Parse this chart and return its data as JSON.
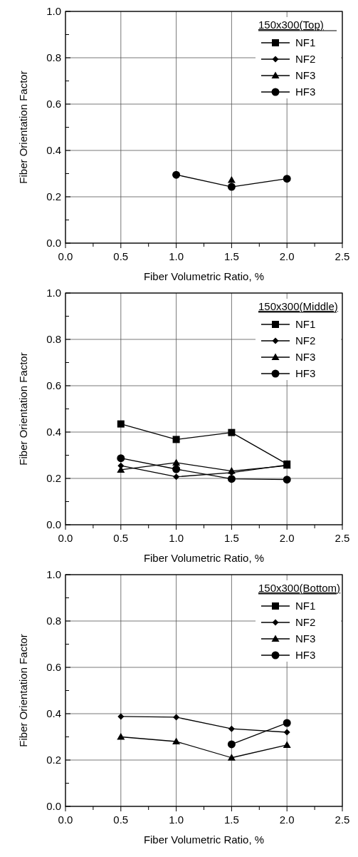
{
  "chart_data": [
    {
      "type": "line",
      "xlabel": "Fiber Volumetric Ratio,  %",
      "ylabel": "Fiber Orientation Factor",
      "legend_title": "150x300(Top)",
      "x": [
        1.0,
        1.5,
        2.0
      ],
      "xlim": [
        0,
        2.5
      ],
      "ylim": [
        0,
        1
      ],
      "xticks": [
        {
          "value": 0,
          "label": "0.0"
        },
        {
          "value": 0.25,
          "label": null
        },
        0.5,
        {
          "value": 0.75,
          "label": null
        },
        {
          "value": 1,
          "label": "1.0"
        },
        {
          "value": 1.25,
          "label": null
        },
        1.5,
        {
          "value": 1.75,
          "label": null
        },
        {
          "value": 2,
          "label": "2.0"
        },
        {
          "value": 2.25,
          "label": null
        },
        2.5
      ],
      "yticks": [
        {
          "value": 0,
          "label": "0.0"
        },
        {
          "value": 0.1,
          "label": null
        },
        0.2,
        {
          "value": 0.3,
          "label": null
        },
        0.4,
        {
          "value": 0.5,
          "label": null
        },
        0.6,
        {
          "value": 0.7,
          "label": null
        },
        0.8,
        {
          "value": 0.9,
          "label": null
        },
        {
          "value": 1,
          "label": "1.0"
        }
      ],
      "grid": true,
      "legend": "top right",
      "line_style": "solid",
      "series": [
        {
          "name": "NF1",
          "color": "#000000",
          "marker": "square",
          "values": [
            null,
            null,
            null
          ]
        },
        {
          "name": "NF2",
          "color": "#000000",
          "marker": "diamond",
          "values": [
            null,
            null,
            null
          ]
        },
        {
          "name": "NF3",
          "color": "#000000",
          "marker": "triangle",
          "values": [
            null,
            0.272,
            null
          ]
        },
        {
          "name": "HF3",
          "color": "#000000",
          "marker": "circle",
          "values": [
            0.295,
            0.243,
            0.278
          ]
        }
      ]
    },
    {
      "type": "line",
      "xlabel": "Fiber Volumetric Ratio,  %",
      "ylabel": "Fiber Orientation Factor",
      "legend_title": "150x300(Middle)",
      "x": [
        0.5,
        1.0,
        1.5,
        2.0
      ],
      "xlim": [
        0,
        2.5
      ],
      "ylim": [
        0,
        1
      ],
      "xticks": [
        {
          "value": 0,
          "label": "0.0"
        },
        {
          "value": 0.25,
          "label": null
        },
        0.5,
        {
          "value": 0.75,
          "label": null
        },
        {
          "value": 1,
          "label": "1.0"
        },
        {
          "value": 1.25,
          "label": null
        },
        1.5,
        {
          "value": 1.75,
          "label": null
        },
        {
          "value": 2,
          "label": "2.0"
        },
        {
          "value": 2.25,
          "label": null
        },
        2.5
      ],
      "yticks": [
        {
          "value": 0,
          "label": "0.0"
        },
        {
          "value": 0.1,
          "label": null
        },
        0.2,
        {
          "value": 0.3,
          "label": null
        },
        0.4,
        {
          "value": 0.5,
          "label": null
        },
        0.6,
        {
          "value": 0.7,
          "label": null
        },
        0.8,
        {
          "value": 0.9,
          "label": null
        },
        {
          "value": 1,
          "label": "1.0"
        }
      ],
      "grid": true,
      "legend": "top right",
      "line_style": "solid",
      "series": [
        {
          "name": "NF1",
          "color": "#000000",
          "marker": "square",
          "values": [
            0.435,
            0.368,
            0.398,
            0.262
          ]
        },
        {
          "name": "NF2",
          "color": "#000000",
          "marker": "diamond",
          "values": [
            0.255,
            0.207,
            0.225,
            0.258
          ]
        },
        {
          "name": "NF3",
          "color": "#000000",
          "marker": "triangle",
          "values": [
            0.237,
            0.268,
            0.232,
            0.255
          ]
        },
        {
          "name": "HF3",
          "color": "#000000",
          "marker": "circle",
          "values": [
            0.287,
            0.24,
            0.198,
            0.195
          ]
        }
      ]
    },
    {
      "type": "line",
      "xlabel": "Fiber Volumetric Ratio,  %",
      "ylabel": "Fiber Orientation Factor",
      "legend_title": "150x300(Bottom)",
      "x": [
        0.5,
        1.0,
        1.5,
        2.0
      ],
      "xlim": [
        0,
        2.5
      ],
      "ylim": [
        0,
        1
      ],
      "xticks": [
        {
          "value": 0,
          "label": "0.0"
        },
        {
          "value": 0.25,
          "label": null
        },
        0.5,
        {
          "value": 0.75,
          "label": null
        },
        {
          "value": 1,
          "label": "1.0"
        },
        {
          "value": 1.25,
          "label": null
        },
        1.5,
        {
          "value": 1.75,
          "label": null
        },
        {
          "value": 2,
          "label": "2.0"
        },
        {
          "value": 2.25,
          "label": null
        },
        2.5
      ],
      "yticks": [
        {
          "value": 0,
          "label": "0.0"
        },
        {
          "value": 0.1,
          "label": null
        },
        0.2,
        {
          "value": 0.3,
          "label": null
        },
        0.4,
        {
          "value": 0.5,
          "label": null
        },
        0.6,
        {
          "value": 0.7,
          "label": null
        },
        0.8,
        {
          "value": 0.9,
          "label": null
        },
        {
          "value": 1,
          "label": "1.0"
        }
      ],
      "grid": true,
      "legend": "top right",
      "line_style": "solid",
      "series": [
        {
          "name": "NF1",
          "color": "#000000",
          "marker": "square",
          "values": [
            null,
            null,
            null,
            null
          ]
        },
        {
          "name": "NF2",
          "color": "#000000",
          "marker": "diamond",
          "values": [
            0.388,
            0.385,
            0.335,
            0.32
          ]
        },
        {
          "name": "NF3",
          "color": "#000000",
          "marker": "triangle",
          "values": [
            0.3,
            0.28,
            0.21,
            0.265
          ]
        },
        {
          "name": "HF3",
          "color": "#000000",
          "marker": "circle",
          "values": [
            null,
            null,
            0.268,
            0.36
          ]
        }
      ]
    }
  ]
}
